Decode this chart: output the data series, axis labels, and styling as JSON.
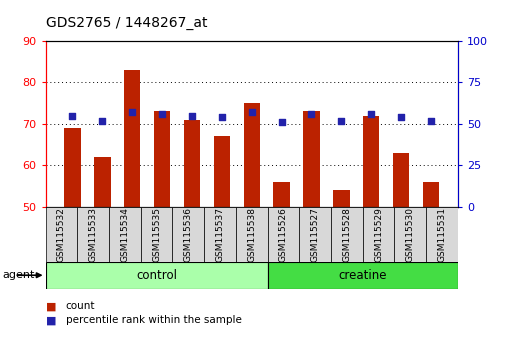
{
  "title": "GDS2765 / 1448267_at",
  "samples": [
    "GSM115532",
    "GSM115533",
    "GSM115534",
    "GSM115535",
    "GSM115536",
    "GSM115537",
    "GSM115538",
    "GSM115526",
    "GSM115527",
    "GSM115528",
    "GSM115529",
    "GSM115530",
    "GSM115531"
  ],
  "counts": [
    69,
    62,
    83,
    73,
    71,
    67,
    75,
    56,
    73,
    54,
    72,
    63,
    56
  ],
  "percentiles": [
    55,
    52,
    57,
    56,
    55,
    54,
    57,
    51,
    56,
    52,
    56,
    54,
    52
  ],
  "n_control": 7,
  "n_creatine": 6,
  "ylim_left": [
    50,
    90
  ],
  "ylim_right": [
    0,
    100
  ],
  "yticks_left": [
    50,
    60,
    70,
    80,
    90
  ],
  "yticks_right": [
    0,
    25,
    50,
    75,
    100
  ],
  "bar_color": "#BB2200",
  "dot_color": "#2222AA",
  "control_color": "#AAFFAA",
  "creatine_color": "#44DD44",
  "agent_label": "agent",
  "control_label": "control",
  "creatine_label": "creatine",
  "legend_count": "count",
  "legend_percentile": "percentile rank within the sample",
  "background_color": "#ffffff"
}
